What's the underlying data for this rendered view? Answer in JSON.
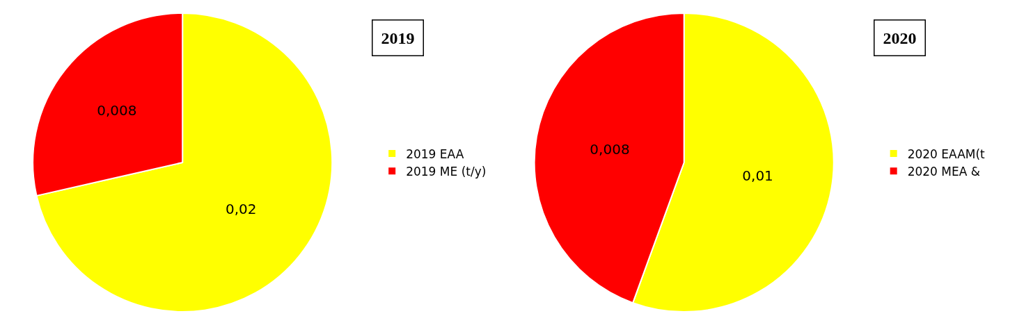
{
  "chart_data": [
    {
      "type": "pie",
      "title": "2019",
      "categories": [
        "2019 EAA",
        "2019 ME (t/y)"
      ],
      "values": [
        0.02,
        0.008
      ],
      "colors": [
        "#ffff00",
        "#ff0000"
      ],
      "value_labels": [
        "0,02",
        "0,008"
      ],
      "legend": "right"
    },
    {
      "type": "pie",
      "title": "2020",
      "categories": [
        "2020 EAAM(t",
        "2020 MEA &"
      ],
      "values": [
        0.01,
        0.008
      ],
      "colors": [
        "#ffff00",
        "#ff0000"
      ],
      "value_labels": [
        "0,01",
        "0,008"
      ],
      "legend": "right"
    }
  ]
}
